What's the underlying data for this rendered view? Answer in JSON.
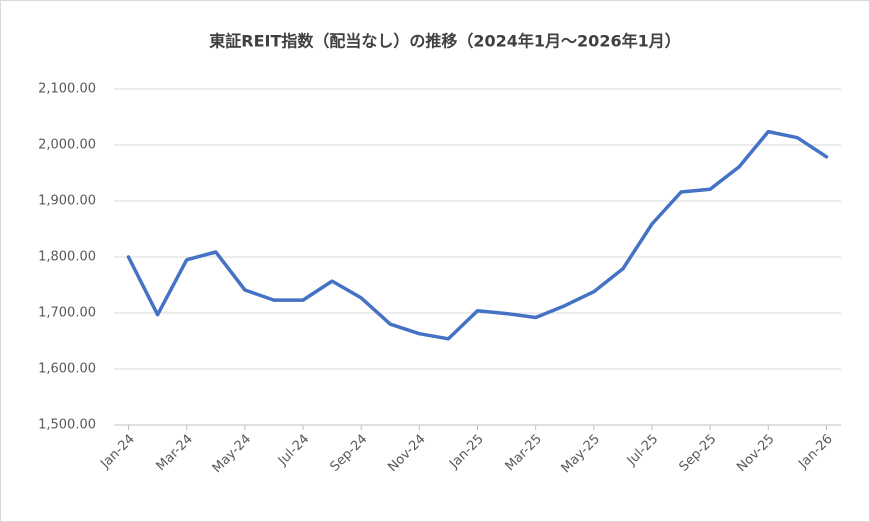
{
  "chart_data": {
    "type": "line",
    "title": "東証REIT指数（配当なし）の推移（2024年1月～2026年1月）",
    "categories": [
      "Jan-24",
      null,
      "Mar-24",
      null,
      "May-24",
      null,
      "Jul-24",
      null,
      "Sep-24",
      null,
      "Nov-24",
      null,
      "Jan-25",
      null,
      "Mar-25",
      null,
      "May-25",
      null,
      "Jul-25",
      null,
      "Sep-25",
      null,
      "Nov-25",
      null,
      "Jan-26"
    ],
    "series": [
      {
        "name": "東証REIT指数",
        "color": "#4472c4",
        "values": [
          1800,
          1697,
          1795,
          1809,
          1741,
          1723,
          1723,
          1757,
          1727,
          1680,
          1663,
          1654,
          1704,
          1699,
          1692,
          1713,
          1738,
          1779,
          1859,
          1916,
          1921,
          1961,
          2024,
          2013,
          1979
        ]
      }
    ],
    "ylim": [
      1500,
      2100
    ],
    "yticks": [
      {
        "value": 1500,
        "label": "1,500.00"
      },
      {
        "value": 1600,
        "label": "1,600.00"
      },
      {
        "value": 1700,
        "label": "1,700.00"
      },
      {
        "value": 1800,
        "label": "1,800.00"
      },
      {
        "value": 1900,
        "label": "1,900.00"
      },
      {
        "value": 2000,
        "label": "2,000.00"
      },
      {
        "value": 2100,
        "label": "2,100.00"
      }
    ],
    "grid": true
  }
}
